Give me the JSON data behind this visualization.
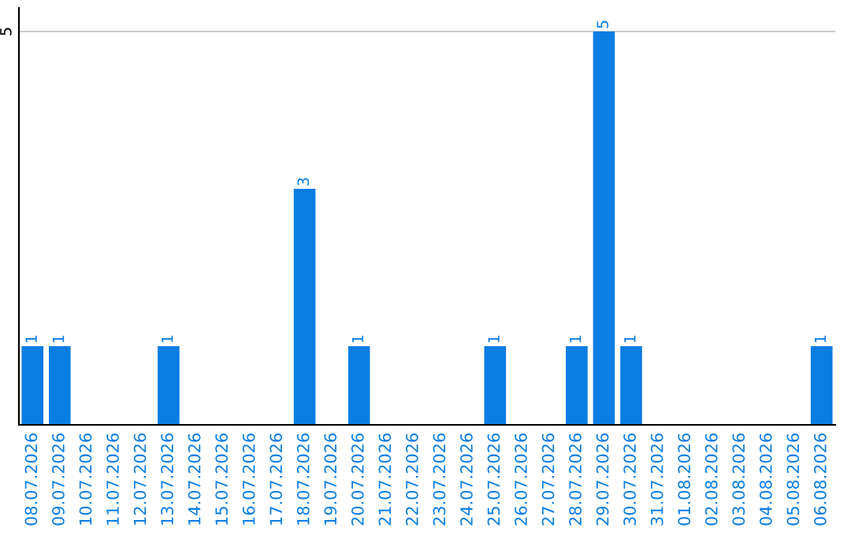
{
  "chart_data": {
    "type": "bar",
    "categories": [
      "08.07.2026",
      "09.07.2026",
      "10.07.2026",
      "11.07.2026",
      "12.07.2026",
      "13.07.2026",
      "14.07.2026",
      "15.07.2026",
      "16.07.2026",
      "17.07.2026",
      "18.07.2026",
      "19.07.2026",
      "20.07.2026",
      "21.07.2026",
      "22.07.2026",
      "23.07.2026",
      "24.07.2026",
      "25.07.2026",
      "26.07.2026",
      "27.07.2026",
      "28.07.2026",
      "29.07.2026",
      "30.07.2026",
      "31.07.2026",
      "01.08.2026",
      "02.08.2026",
      "03.08.2026",
      "04.08.2026",
      "05.08.2026",
      "06.08.2026"
    ],
    "values": [
      1,
      1,
      0,
      0,
      0,
      1,
      0,
      0,
      0,
      0,
      3,
      0,
      1,
      0,
      0,
      0,
      0,
      1,
      0,
      0,
      1,
      5,
      1,
      0,
      0,
      0,
      0,
      0,
      0,
      1
    ],
    "value_labels": [
      "1",
      "1",
      null,
      null,
      null,
      "1",
      null,
      null,
      null,
      null,
      "3",
      null,
      "1",
      null,
      null,
      null,
      null,
      "1",
      null,
      null,
      "1",
      "5",
      "1",
      null,
      null,
      null,
      null,
      null,
      null,
      "1"
    ],
    "color": "#0a7de3",
    "ylim": [
      0,
      5.3
    ],
    "yticks": [
      5
    ],
    "grid": "y"
  }
}
